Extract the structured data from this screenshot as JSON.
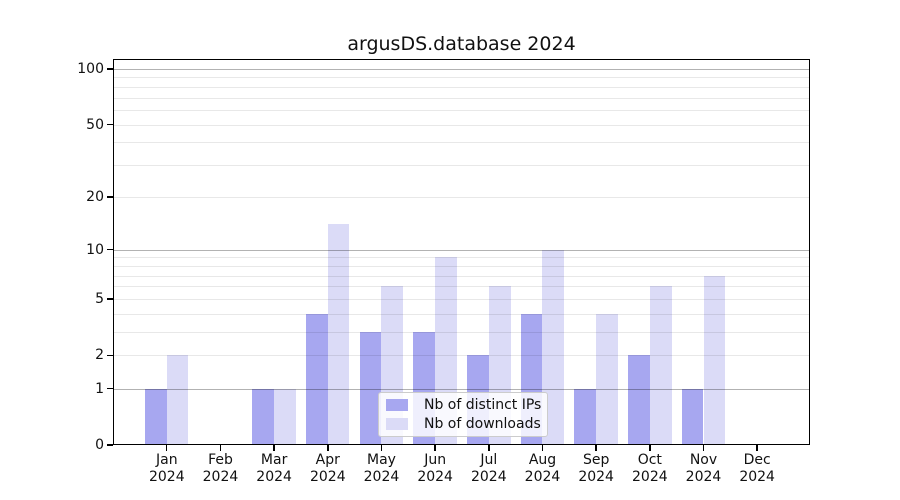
{
  "title": "argusDS.database 2024",
  "chart_data": {
    "type": "bar",
    "title": "argusDS.database 2024",
    "categories": [
      "Jan 2024",
      "Feb 2024",
      "Mar 2024",
      "Apr 2024",
      "May 2024",
      "Jun 2024",
      "Jul 2024",
      "Aug 2024",
      "Sep 2024",
      "Oct 2024",
      "Nov 2024",
      "Dec 2024"
    ],
    "series": [
      {
        "name": "Nb of distinct IPs",
        "color": "#a7a7f0",
        "values": [
          1,
          0,
          1,
          4,
          3,
          3,
          2,
          4,
          1,
          2,
          1,
          0
        ]
      },
      {
        "name": "Nb of downloads",
        "color": "#dbdbf7",
        "values": [
          2,
          0,
          1,
          14,
          6,
          9,
          6,
          10,
          4,
          6,
          7,
          0
        ]
      }
    ],
    "yscale": "log1p",
    "ylim": [
      0,
      113
    ],
    "ytick_values": [
      0,
      1,
      2,
      5,
      10,
      20,
      50,
      100
    ],
    "ytick_labels": [
      "0",
      "1",
      "2",
      "5",
      "10",
      "20",
      "50",
      "100"
    ],
    "minor_grid_values": [
      2,
      3,
      4,
      5,
      6,
      7,
      8,
      9,
      20,
      30,
      40,
      50,
      60,
      70,
      80,
      90
    ],
    "major_grid_values": [
      1,
      10,
      100
    ],
    "grid": true,
    "legend_position": "lower center",
    "background": "#ffffff"
  }
}
